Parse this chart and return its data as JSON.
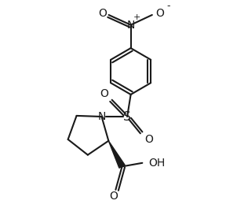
{
  "bg_color": "#ffffff",
  "line_color": "#1a1a1a",
  "line_width": 1.5,
  "font_size": 9,
  "figsize": [
    2.88,
    2.64
  ],
  "dpi": 100,
  "xlim": [
    -0.5,
    3.5
  ],
  "ylim": [
    -2.8,
    2.8
  ]
}
